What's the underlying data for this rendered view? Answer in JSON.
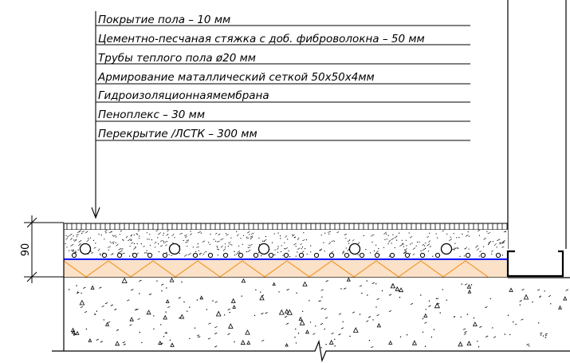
{
  "drawing": {
    "layers": [
      "Покрытие пола – 10 мм",
      "Цементно-песчаная стяжка с доб. фиброволокна – 50 мм",
      "Трубы теплого пола ø20 мм",
      "Армирование маталлический сеткой 50х50х4мм",
      "Гидроизоляционнаямембрана",
      "Пеноплекс – 30 мм",
      "Перекрытие /ЛСТК – 300 мм"
    ],
    "dimension_value": "90",
    "colors": {
      "line": "#000000",
      "membrane": "#1a1aff",
      "insulation_fill": "#fbe1c8",
      "insulation_zigzag": "#f39a2c"
    }
  }
}
